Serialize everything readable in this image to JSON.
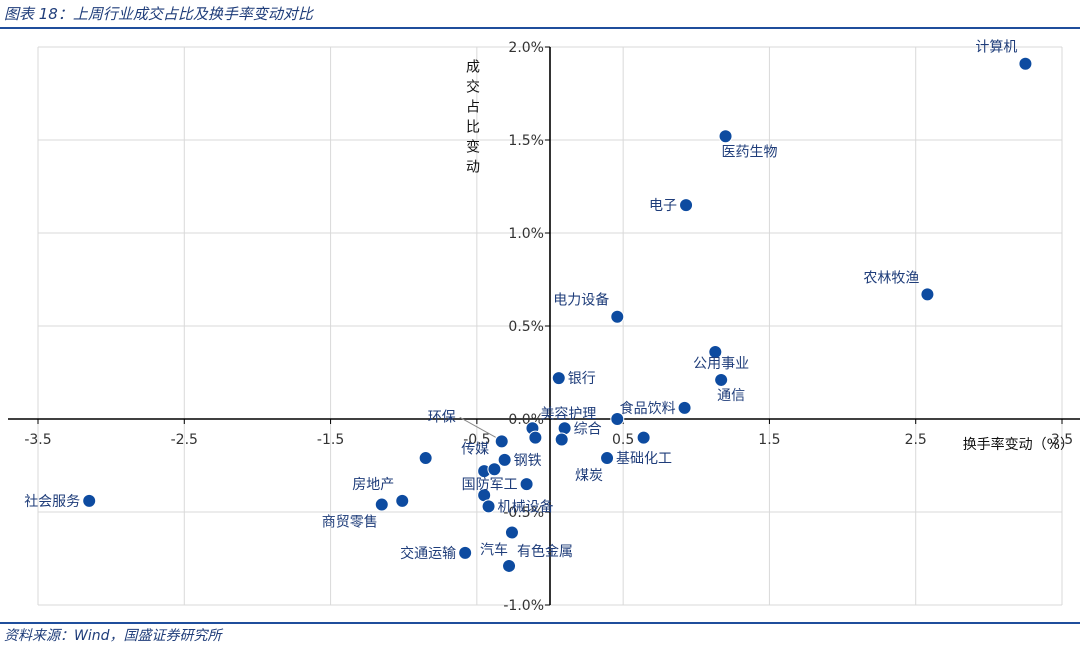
{
  "header": {
    "title": "图表 18：上周行业成交占比及换手率变动对比"
  },
  "footer": {
    "source": "资料来源：Wind，国盛证券研究所"
  },
  "colors": {
    "point": "#0d4ba0",
    "text": "#1f3d7a",
    "axis": "#000000",
    "grid": "#d9d9d9",
    "rule": "#1f4e9c"
  },
  "chart_data": {
    "type": "scatter",
    "title": "上周行业成交占比及换手率变动对比",
    "xlabel": "换手率变动（%）",
    "ylabel": "成交占比变动",
    "xlim": [
      -3.5,
      3.5
    ],
    "ylim": [
      -1.0,
      2.0
    ],
    "xticks": [
      -3.5,
      -2.5,
      -1.5,
      -0.5,
      0.5,
      1.5,
      2.5,
      3.5
    ],
    "xtick_labels": [
      "-3.5",
      "-2.5",
      "-1.5",
      "-0.5",
      "0.5",
      "1.5",
      "2.5",
      "3.5"
    ],
    "yticks": [
      -1.0,
      -0.5,
      0.0,
      0.5,
      1.0,
      1.5,
      2.0
    ],
    "ytick_labels": [
      "-1.0%",
      "-0.5%",
      "0.0%",
      "0.5%",
      "1.0%",
      "1.5%",
      "2.0%"
    ],
    "grid": true,
    "points": [
      {
        "name": "计算机",
        "x": 3.25,
        "y": 1.91,
        "label_pos": "upper-left"
      },
      {
        "name": "医药生物",
        "x": 1.2,
        "y": 1.52,
        "label_pos": "lower-right"
      },
      {
        "name": "电子",
        "x": 0.93,
        "y": 1.15,
        "label_pos": "left"
      },
      {
        "name": "农林牧渔",
        "x": 2.58,
        "y": 0.67,
        "label_pos": "upper-left"
      },
      {
        "name": "电力设备",
        "x": 0.46,
        "y": 0.55,
        "label_pos": "upper-left"
      },
      {
        "name": "",
        "x": 1.13,
        "y": 0.36,
        "label_pos": "none"
      },
      {
        "name": "公用事业",
        "x": 1.17,
        "y": 0.21,
        "label_pos": "upper-middle"
      },
      {
        "name": "通信",
        "x": 1.17,
        "y": 0.21,
        "label_pos": "lower-right"
      },
      {
        "name": "银行",
        "x": 0.06,
        "y": 0.22,
        "label_pos": "right"
      },
      {
        "name": "食品饮料",
        "x": 0.92,
        "y": 0.06,
        "label_pos": "left"
      },
      {
        "name": "美容护理",
        "x": -0.12,
        "y": -0.05,
        "label_pos": "upper-right"
      },
      {
        "name": "综合",
        "x": 0.1,
        "y": -0.05,
        "label_pos": "right"
      },
      {
        "name": "",
        "x": 0.46,
        "y": 0.0,
        "label_pos": "none"
      },
      {
        "name": "",
        "x": 0.64,
        "y": -0.1,
        "label_pos": "none"
      },
      {
        "name": "",
        "x": -0.1,
        "y": -0.1,
        "label_pos": "none"
      },
      {
        "name": "",
        "x": 0.08,
        "y": -0.11,
        "label_pos": "none"
      },
      {
        "name": "环保",
        "x": -0.33,
        "y": -0.12,
        "label_pos": "leader-upper-left"
      },
      {
        "name": "传媒",
        "x": -0.85,
        "y": -0.21,
        "label_pos": "none"
      },
      {
        "name": "钢铁",
        "x": -0.31,
        "y": -0.22,
        "label_pos": "right"
      },
      {
        "name": "煤炭",
        "x": 0.39,
        "y": -0.21,
        "label_pos": "lower-left"
      },
      {
        "name": "基础化工",
        "x": 0.39,
        "y": -0.21,
        "label_pos": "right"
      },
      {
        "name": "",
        "x": -0.45,
        "y": -0.28,
        "label_pos": "none"
      },
      {
        "name": "",
        "x": -0.38,
        "y": -0.27,
        "label_pos": "none"
      },
      {
        "name": "国防军工",
        "x": -0.16,
        "y": -0.35,
        "label_pos": "left"
      },
      {
        "name": "",
        "x": -0.45,
        "y": -0.41,
        "label_pos": "none"
      },
      {
        "name": "机械设备",
        "x": -0.42,
        "y": -0.47,
        "label_pos": "right"
      },
      {
        "name": "房地产",
        "x": -1.01,
        "y": -0.44,
        "label_pos": "upper-left"
      },
      {
        "name": "",
        "x": -1.15,
        "y": -0.46,
        "label_pos": "none"
      },
      {
        "name": "商贸零售",
        "x": -1.15,
        "y": -0.46,
        "label_pos": "lower-left"
      },
      {
        "name": "社会服务",
        "x": -3.15,
        "y": -0.44,
        "label_pos": "left"
      },
      {
        "name": "",
        "x": -0.26,
        "y": -0.61,
        "label_pos": "none"
      },
      {
        "name": "汽车",
        "x": -0.26,
        "y": -0.61,
        "label_pos": "lower-left"
      },
      {
        "name": "交通运输",
        "x": -0.58,
        "y": -0.72,
        "label_pos": "left"
      },
      {
        "name": "有色金属",
        "x": -0.28,
        "y": -0.79,
        "label_pos": "upper-right"
      }
    ]
  }
}
